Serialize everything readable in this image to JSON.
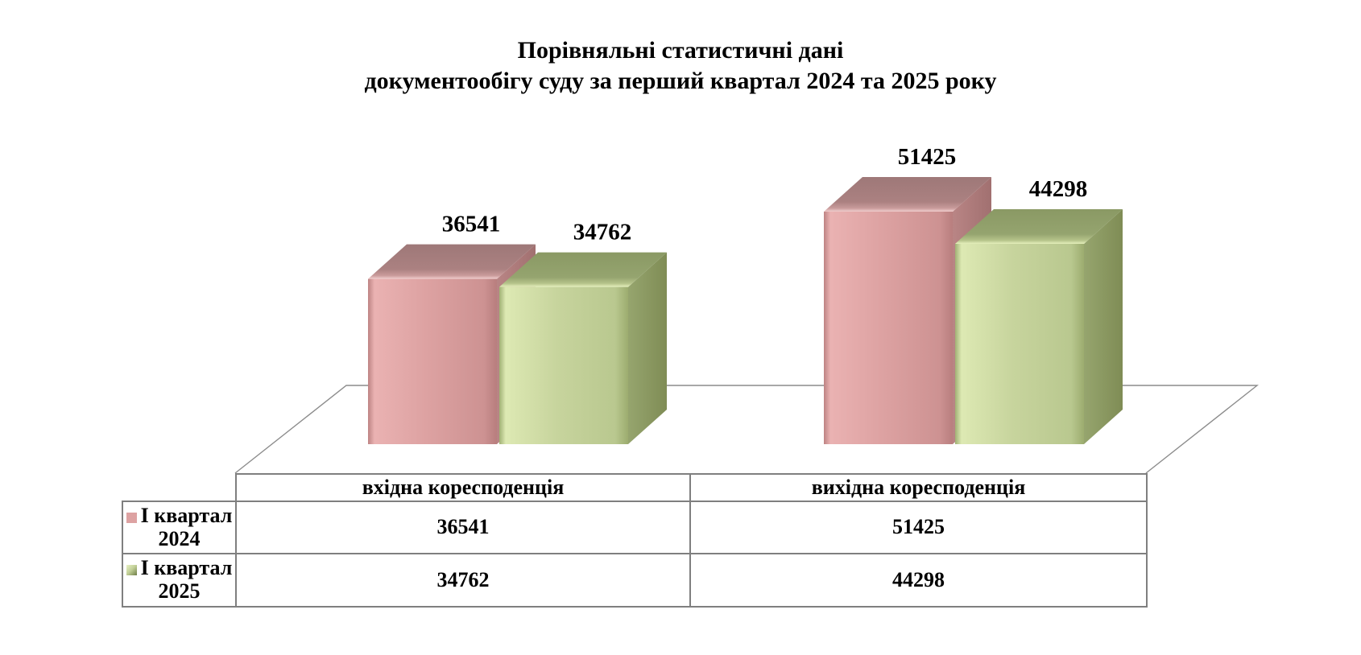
{
  "title": {
    "lines": [
      "Порівняльні статистичні дані",
      "документообігу суду за перший квартал 2024 та 2025 року"
    ]
  },
  "chart_data": {
    "type": "bar",
    "projection": "3d-clustered-column",
    "title": "Порівняльні статистичні дані документообігу суду за перший квартал 2024 та 2025 року",
    "categories": [
      "вхідна коресподенція",
      "вихідна коресподенція"
    ],
    "series": [
      {
        "name": "І квартал 2024",
        "values": [
          36541,
          51425
        ],
        "color": "#dda2a2"
      },
      {
        "name": "І квартал 2025",
        "values": [
          34762,
          44298
        ],
        "color": "#c7d49d"
      }
    ],
    "data_labels": true,
    "gridlines": false,
    "legend_position": "left-of-data-table",
    "ylim": [
      0,
      52000
    ]
  },
  "data_table": {
    "column_headers": [
      "вхідна коресподенція",
      "вихідна коресподенція"
    ],
    "rows": [
      {
        "label": "І квартал 2024",
        "marker_color": "#dda2a2",
        "values": [
          "36541",
          "51425"
        ]
      },
      {
        "label": "І квартал 2025",
        "marker_color": "#c1cf97",
        "values": [
          "34762",
          "44298"
        ]
      }
    ]
  }
}
